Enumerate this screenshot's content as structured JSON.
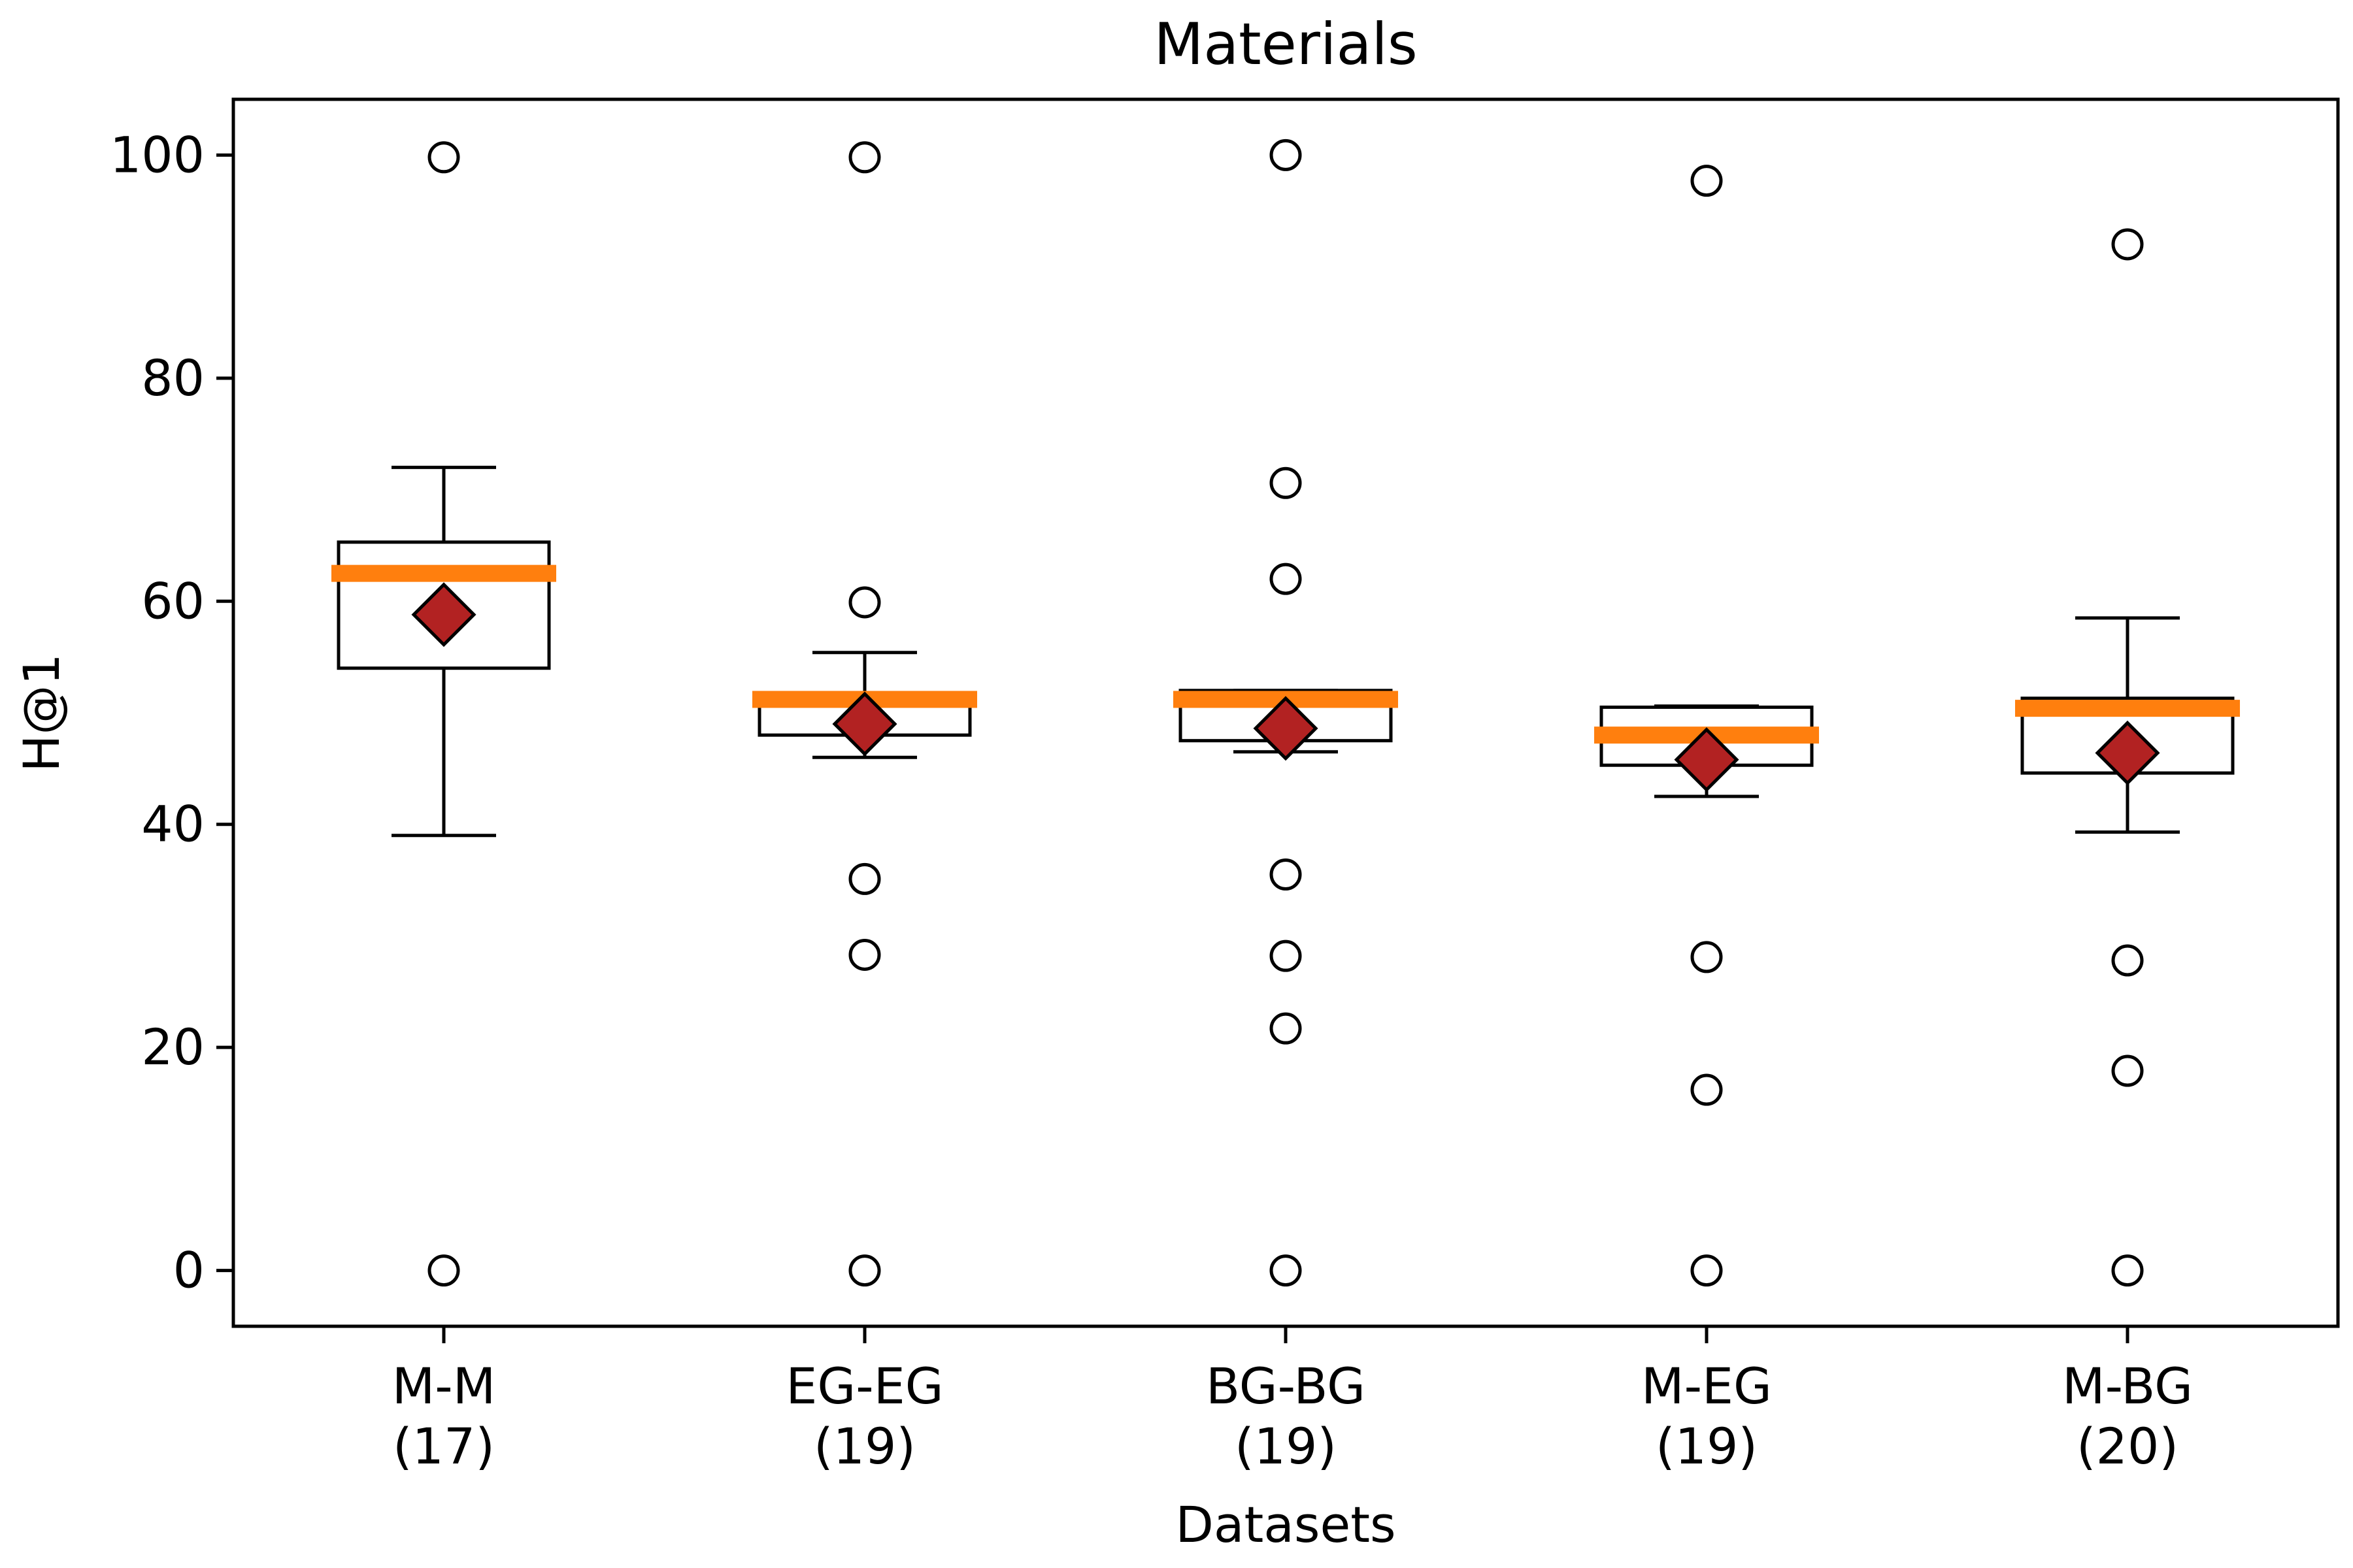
{
  "chart_data": {
    "type": "box",
    "title": "Materials",
    "xlabel": "Datasets",
    "ylabel": "H@1",
    "ylim": [
      -5,
      105
    ],
    "yticks": [
      "0",
      "20",
      "40",
      "60",
      "80",
      "100"
    ],
    "grid": false,
    "legend": "none",
    "categories": [
      {
        "label": "M-M",
        "count": "(17)"
      },
      {
        "label": "EG-EG",
        "count": "(19)"
      },
      {
        "label": "BG-BG",
        "count": "(19)"
      },
      {
        "label": "M-EG",
        "count": "(19)"
      },
      {
        "label": "M-BG",
        "count": "(20)"
      }
    ],
    "boxes": [
      {
        "whisker_low": 39.0,
        "q1": 54.0,
        "median": 62.5,
        "q3": 65.3,
        "whisker_high": 72.0,
        "mean": 58.8,
        "outliers": [
          0.0,
          99.8
        ]
      },
      {
        "whisker_low": 46.0,
        "q1": 48.0,
        "median": 51.2,
        "q3": 51.3,
        "whisker_high": 55.4,
        "mean": 49.0,
        "outliers": [
          0.0,
          28.3,
          35.1,
          59.9,
          99.8
        ]
      },
      {
        "whisker_low": 46.5,
        "q1": 47.5,
        "median": 51.2,
        "q3": 52.0,
        "whisker_high": 52.0,
        "mean": 48.6,
        "outliers": [
          0.0,
          21.7,
          28.2,
          35.5,
          62.0,
          70.6,
          100.0
        ]
      },
      {
        "whisker_low": 42.5,
        "q1": 45.3,
        "median": 48.0,
        "q3": 50.5,
        "whisker_high": 50.6,
        "mean": 45.8,
        "outliers": [
          0.0,
          16.2,
          28.1,
          97.7
        ]
      },
      {
        "whisker_low": 39.3,
        "q1": 44.6,
        "median": 50.4,
        "q3": 51.3,
        "whisker_high": 58.5,
        "mean": 46.4,
        "outliers": [
          0.0,
          17.9,
          27.8,
          92.0
        ]
      }
    ],
    "colors": {
      "median": "#ff7f0e",
      "mean_fill": "#b22222",
      "box_edge": "#000000",
      "outlier_edge": "#000000"
    }
  }
}
